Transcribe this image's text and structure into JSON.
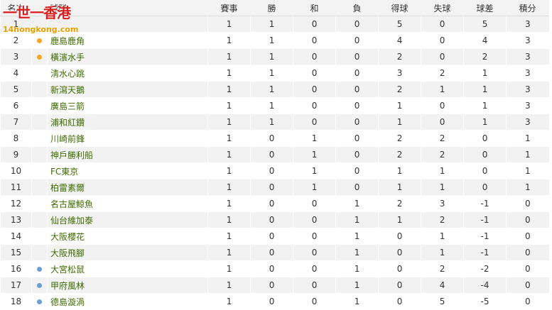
{
  "watermark": {
    "title": "一世一香港",
    "url": "14hongkong.com"
  },
  "table": {
    "header": [
      "名次",
      "球隊",
      "賽事",
      "勝",
      "和",
      "負",
      "得球",
      "失球",
      "球差",
      "積分"
    ],
    "marker_colors": {
      "orange": "#f5a623",
      "blue": "#6a9fd4"
    },
    "rows": [
      {
        "rank": 1,
        "marker": null,
        "team": null,
        "stats": [
          1,
          1,
          0,
          0,
          5,
          0,
          5,
          3
        ]
      },
      {
        "rank": 2,
        "marker": "orange",
        "team": "鹿島鹿角",
        "stats": [
          1,
          1,
          0,
          0,
          4,
          0,
          4,
          3
        ]
      },
      {
        "rank": 3,
        "marker": "orange",
        "team": "橫濱水手",
        "stats": [
          1,
          1,
          0,
          0,
          2,
          0,
          2,
          3
        ]
      },
      {
        "rank": 4,
        "marker": null,
        "team": "淸水心跳",
        "stats": [
          1,
          1,
          0,
          0,
          3,
          2,
          1,
          3
        ]
      },
      {
        "rank": 5,
        "marker": null,
        "team": "新瀉天鵝",
        "stats": [
          1,
          1,
          0,
          0,
          2,
          1,
          1,
          3
        ]
      },
      {
        "rank": 6,
        "marker": null,
        "team": "廣島三箭",
        "stats": [
          1,
          1,
          0,
          0,
          1,
          0,
          1,
          3
        ]
      },
      {
        "rank": 7,
        "marker": null,
        "team": "浦和紅鑽",
        "stats": [
          1,
          1,
          0,
          0,
          1,
          0,
          1,
          3
        ]
      },
      {
        "rank": 8,
        "marker": null,
        "team": "川崎前鋒",
        "stats": [
          1,
          0,
          1,
          0,
          2,
          2,
          0,
          1
        ]
      },
      {
        "rank": 9,
        "marker": null,
        "team": "神戶勝利船",
        "stats": [
          1,
          0,
          1,
          0,
          2,
          2,
          0,
          1
        ]
      },
      {
        "rank": 10,
        "marker": null,
        "team": "FC東京",
        "stats": [
          1,
          0,
          1,
          0,
          1,
          1,
          0,
          1
        ]
      },
      {
        "rank": 11,
        "marker": null,
        "team": "柏雷素爾",
        "stats": [
          1,
          0,
          1,
          0,
          1,
          1,
          0,
          1
        ]
      },
      {
        "rank": 12,
        "marker": null,
        "team": "名古屋鯨魚",
        "stats": [
          1,
          0,
          0,
          1,
          2,
          3,
          -1,
          0
        ]
      },
      {
        "rank": 13,
        "marker": null,
        "team": "仙台維加泰",
        "stats": [
          1,
          0,
          0,
          1,
          1,
          2,
          -1,
          0
        ]
      },
      {
        "rank": 14,
        "marker": null,
        "team": "大阪櫻花",
        "stats": [
          1,
          0,
          0,
          1,
          0,
          1,
          -1,
          0
        ]
      },
      {
        "rank": 15,
        "marker": null,
        "team": "大阪飛腳",
        "stats": [
          1,
          0,
          0,
          1,
          0,
          1,
          -1,
          0
        ]
      },
      {
        "rank": 16,
        "marker": "blue",
        "team": "大宮松鼠",
        "stats": [
          1,
          0,
          0,
          1,
          0,
          2,
          -2,
          0
        ]
      },
      {
        "rank": 17,
        "marker": "blue",
        "team": "甲府風林",
        "stats": [
          1,
          0,
          0,
          1,
          0,
          4,
          -4,
          0
        ]
      },
      {
        "rank": 18,
        "marker": "blue",
        "team": "德島漩渦",
        "stats": [
          1,
          0,
          0,
          1,
          0,
          5,
          -5,
          0
        ]
      }
    ]
  }
}
